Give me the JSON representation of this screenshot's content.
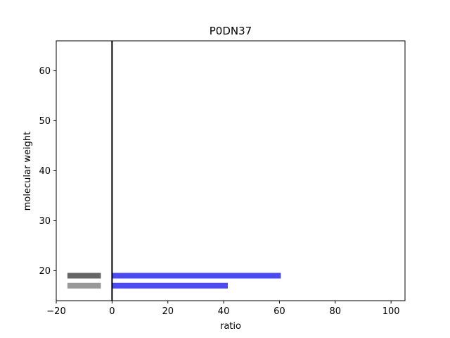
{
  "chart_data": {
    "type": "bar",
    "orientation": "horizontal",
    "title": "P0DN37",
    "xlabel": "ratio",
    "ylabel": "molecular weight",
    "xlim": [
      -20,
      105
    ],
    "ylim": [
      14,
      66
    ],
    "xticks": [
      -20,
      0,
      20,
      40,
      60,
      80,
      100
    ],
    "yticks": [
      20,
      30,
      40,
      50,
      60
    ],
    "reference_line_x": 0,
    "grid": false,
    "bars": [
      {
        "y": 19,
        "x_start": 0,
        "x_end": 60.5,
        "color": "#4b4bf0"
      },
      {
        "y": 17,
        "x_start": 0,
        "x_end": 41.5,
        "color": "#4b4bf0"
      },
      {
        "y": 19,
        "x_start": -16,
        "x_end": -4,
        "color": "#666666"
      },
      {
        "y": 17,
        "x_start": -16,
        "x_end": -4,
        "color": "#999999"
      }
    ]
  }
}
